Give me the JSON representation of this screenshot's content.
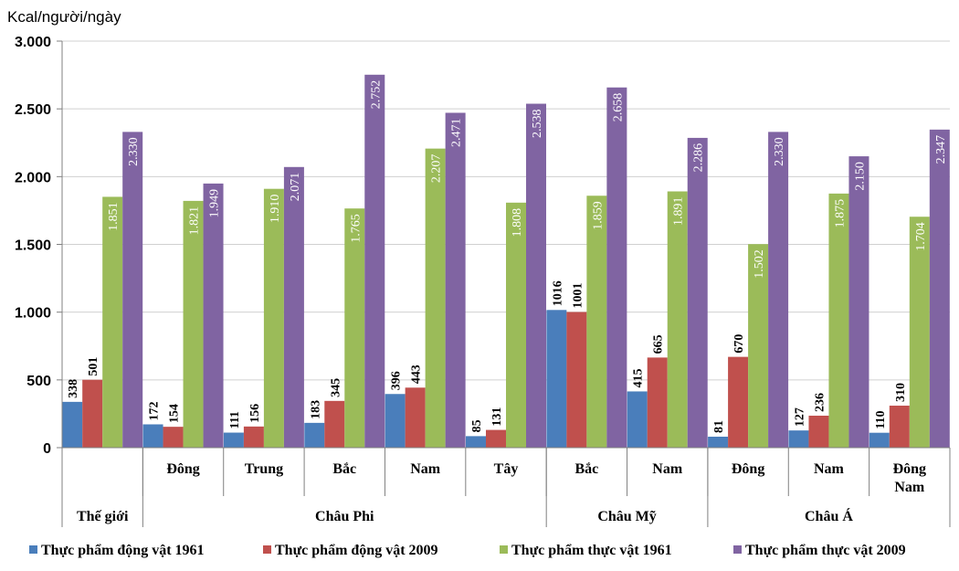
{
  "chart_data": {
    "type": "bar",
    "ylabel": "Kcal/người/ngày",
    "ylim": [
      0,
      3000
    ],
    "yticks": [
      0,
      500,
      1000,
      1500,
      2000,
      2500,
      3000
    ],
    "ytick_labels": [
      "0",
      "500",
      "1.000",
      "1.500",
      "2.000",
      "2.500",
      "3.000"
    ],
    "grid": true,
    "legend_position": "bottom",
    "categories": [
      {
        "region": "Thế giới",
        "sub": ""
      },
      {
        "region": "Châu Phi",
        "sub": "Đông"
      },
      {
        "region": "Châu Phi",
        "sub": "Trung"
      },
      {
        "region": "Châu Phi",
        "sub": "Bắc"
      },
      {
        "region": "Châu Phi",
        "sub": "Nam"
      },
      {
        "region": "Châu Phi",
        "sub": "Tây"
      },
      {
        "region": "Châu Mỹ",
        "sub": "Bắc"
      },
      {
        "region": "Châu Mỹ",
        "sub": "Nam"
      },
      {
        "region": "Châu Á",
        "sub": "Đông"
      },
      {
        "region": "Châu Á",
        "sub": "Nam"
      },
      {
        "region": "Châu Á",
        "sub": "Đông Nam"
      }
    ],
    "groups": [
      {
        "label": "Thế giới",
        "span": 1
      },
      {
        "label": "Châu Phi",
        "span": 5
      },
      {
        "label": "Châu Mỹ",
        "span": 2
      },
      {
        "label": "Châu Á",
        "span": 3
      }
    ],
    "series": [
      {
        "name": "Thực phẩm động vật 1961",
        "color": "#4a7ebb",
        "values": [
          338,
          172,
          111,
          183,
          396,
          85,
          1016,
          415,
          81,
          127,
          110
        ],
        "labels": [
          "338",
          "172",
          "111",
          "183",
          "396",
          "85",
          "1016",
          "415",
          "81",
          "127",
          "110"
        ]
      },
      {
        "name": "Thực phẩm động vật 2009",
        "color": "#c0504d",
        "values": [
          501,
          154,
          156,
          345,
          443,
          131,
          1001,
          665,
          670,
          236,
          310
        ],
        "labels": [
          "501",
          "154",
          "156",
          "345",
          "443",
          "131",
          "1001",
          "665",
          "670",
          "236",
          "310"
        ]
      },
      {
        "name": "Thực phẩm thực vật 1961",
        "color": "#9bbb59",
        "values": [
          1851,
          1821,
          1910,
          1765,
          2207,
          1808,
          1859,
          1891,
          1502,
          1875,
          1704
        ],
        "labels": [
          "1.851",
          "1.821",
          "1.910",
          "1.765",
          "2.207",
          "1.808",
          "1.859",
          "1.891",
          "1.502",
          "1.875",
          "1.704"
        ]
      },
      {
        "name": "Thực phẩm thực vật 2009",
        "color": "#8064a2",
        "values": [
          2330,
          1949,
          2071,
          2752,
          2471,
          2538,
          2658,
          2286,
          2330,
          2150,
          2347
        ],
        "labels": [
          "2.330",
          "1.949",
          "2.071",
          "2.752",
          "2.471",
          "2.538",
          "2.658",
          "2.286",
          "2.330",
          "2.150",
          "2.347"
        ]
      }
    ]
  }
}
